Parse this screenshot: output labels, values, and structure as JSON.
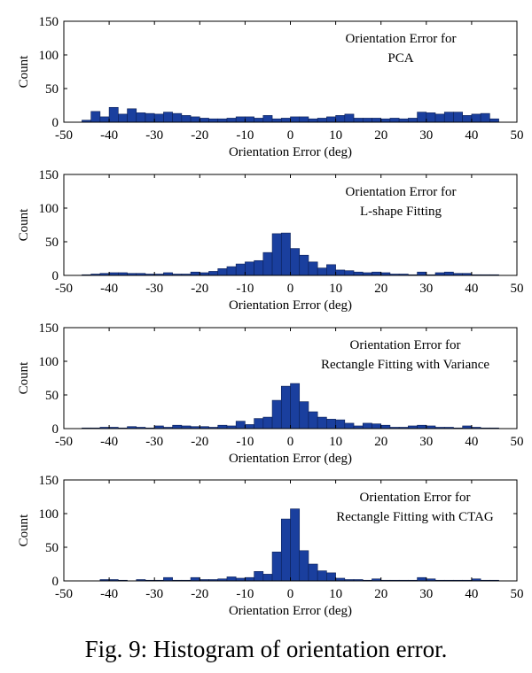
{
  "caption": "Fig. 9: Histogram of orientation error.",
  "colors": {
    "bar_fill": "#1a3f9e",
    "bar_stroke": "#0b1f55",
    "axis": "#000000"
  },
  "chart_data": [
    {
      "type": "bar",
      "title_lines": [
        "Orientation Error for",
        "PCA"
      ],
      "xlabel": "Orientation Error (deg)",
      "ylabel": "Count",
      "xlim": [
        -50,
        50
      ],
      "ylim": [
        0,
        150
      ],
      "xticks": [
        -50,
        -40,
        -30,
        -20,
        -10,
        0,
        10,
        20,
        30,
        40,
        50
      ],
      "yticks": [
        0,
        50,
        100,
        150
      ],
      "bin_start": -46,
      "bin_width": 2,
      "values": [
        3,
        16,
        8,
        22,
        12,
        20,
        14,
        13,
        12,
        15,
        13,
        10,
        8,
        6,
        5,
        5,
        6,
        8,
        8,
        6,
        10,
        5,
        6,
        8,
        8,
        5,
        6,
        8,
        10,
        12,
        6,
        6,
        6,
        5,
        6,
        5,
        6,
        15,
        14,
        12,
        15,
        15,
        10,
        12,
        13,
        5
      ]
    },
    {
      "type": "bar",
      "title_lines": [
        "Orientation Error for",
        "L-shape Fitting"
      ],
      "xlabel": "Orientation Error (deg)",
      "ylabel": "Count",
      "xlim": [
        -50,
        50
      ],
      "ylim": [
        0,
        150
      ],
      "xticks": [
        -50,
        -40,
        -30,
        -20,
        -10,
        0,
        10,
        20,
        30,
        40,
        50
      ],
      "yticks": [
        0,
        50,
        100,
        150
      ],
      "bin_start": -46,
      "bin_width": 2,
      "values": [
        1,
        2,
        3,
        4,
        4,
        3,
        3,
        2,
        2,
        4,
        2,
        2,
        5,
        4,
        6,
        10,
        13,
        17,
        20,
        22,
        34,
        62,
        63,
        40,
        30,
        20,
        11,
        16,
        8,
        7,
        5,
        4,
        5,
        4,
        2,
        2,
        1,
        5,
        1,
        4,
        5,
        3,
        3,
        1,
        1,
        1
      ]
    },
    {
      "type": "bar",
      "title_lines": [
        "Orientation Error for",
        "Rectangle Fitting with Variance"
      ],
      "xlabel": "Orientation Error (deg)",
      "ylabel": "Count",
      "xlim": [
        -50,
        50
      ],
      "ylim": [
        0,
        150
      ],
      "xticks": [
        -50,
        -40,
        -30,
        -20,
        -10,
        0,
        10,
        20,
        30,
        40,
        50
      ],
      "yticks": [
        0,
        50,
        100,
        150
      ],
      "bin_start": -46,
      "bin_width": 2,
      "values": [
        1,
        1,
        2,
        2,
        1,
        3,
        2,
        1,
        4,
        2,
        5,
        4,
        3,
        3,
        2,
        5,
        4,
        11,
        6,
        15,
        17,
        42,
        63,
        67,
        40,
        25,
        17,
        14,
        13,
        8,
        4,
        8,
        7,
        5,
        2,
        2,
        4,
        5,
        4,
        2,
        2,
        1,
        4,
        2,
        1,
        1
      ]
    },
    {
      "type": "bar",
      "title_lines": [
        "Orientation Error for",
        "Rectangle Fitting with CTAG"
      ],
      "xlabel": "Orientation Error (deg)",
      "ylabel": "Count",
      "xlim": [
        -50,
        50
      ],
      "ylim": [
        0,
        150
      ],
      "xticks": [
        -50,
        -40,
        -30,
        -20,
        -10,
        0,
        10,
        20,
        30,
        40,
        50
      ],
      "yticks": [
        0,
        50,
        100,
        150
      ],
      "bin_start": -46,
      "bin_width": 2,
      "values": [
        0,
        0,
        2,
        2,
        1,
        0,
        2,
        1,
        1,
        5,
        1,
        1,
        5,
        2,
        2,
        3,
        6,
        4,
        5,
        14,
        10,
        43,
        92,
        107,
        45,
        25,
        15,
        12,
        4,
        2,
        2,
        1,
        3,
        1,
        1,
        1,
        1,
        5,
        3,
        1,
        1,
        1,
        1,
        3,
        1,
        1
      ]
    }
  ]
}
